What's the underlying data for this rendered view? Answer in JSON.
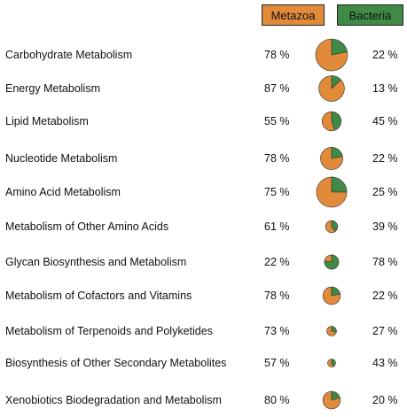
{
  "legend": {
    "metazoa_label": "Metazoa",
    "bacteria_label": "Bacteria",
    "metazoa_color": "#e08a3a",
    "bacteria_color": "#3f8a45"
  },
  "chart_data": {
    "type": "pie",
    "series": [
      {
        "name": "Metazoa"
      },
      {
        "name": "Bacteria"
      }
    ],
    "rows": [
      {
        "category": "Carbohydrate Metabolism",
        "metazoa_pct": 78,
        "bacteria_pct": 22,
        "metazoa_label": "78 %",
        "bacteria_label": "22 %",
        "relative_size": 1.0
      },
      {
        "category": "Energy Metabolism",
        "metazoa_pct": 87,
        "bacteria_pct": 13,
        "metazoa_label": "87 %",
        "bacteria_label": "13 %",
        "relative_size": 0.8
      },
      {
        "category": "Lipid Metabolism",
        "metazoa_pct": 55,
        "bacteria_pct": 45,
        "metazoa_label": "55 %",
        "bacteria_label": "45 %",
        "relative_size": 0.6
      },
      {
        "category": "Nucleotide Metabolism",
        "metazoa_pct": 78,
        "bacteria_pct": 22,
        "metazoa_label": "78 %",
        "bacteria_label": "22 %",
        "relative_size": 0.7
      },
      {
        "category": "Amino Acid Metabolism",
        "metazoa_pct": 75,
        "bacteria_pct": 25,
        "metazoa_label": "75 %",
        "bacteria_label": "25 %",
        "relative_size": 0.95
      },
      {
        "category": "Metabolism of Other Amino Acids",
        "metazoa_pct": 61,
        "bacteria_pct": 39,
        "metazoa_label": "61 %",
        "bacteria_label": "39 %",
        "relative_size": 0.38
      },
      {
        "category": "Glycan Biosynthesis and Metabolism",
        "metazoa_pct": 22,
        "bacteria_pct": 78,
        "metazoa_label": "22 %",
        "bacteria_label": "78 %",
        "relative_size": 0.45
      },
      {
        "category": "Metabolism of Cofactors and Vitamins",
        "metazoa_pct": 78,
        "bacteria_pct": 22,
        "metazoa_label": "78 %",
        "bacteria_label": "22 %",
        "relative_size": 0.55
      },
      {
        "category": "Metabolism of Terpenoids and Polyketides",
        "metazoa_pct": 73,
        "bacteria_pct": 27,
        "metazoa_label": "73 %",
        "bacteria_label": "27 %",
        "relative_size": 0.3
      },
      {
        "category": "Biosynthesis of Other Secondary Metabolites",
        "metazoa_pct": 57,
        "bacteria_pct": 43,
        "metazoa_label": "57 %",
        "bacteria_label": "43 %",
        "relative_size": 0.25
      },
      {
        "category": "Xenobiotics Biodegradation and Metabolism",
        "metazoa_pct": 80,
        "bacteria_pct": 20,
        "metazoa_label": "80 %",
        "bacteria_label": "20 %",
        "relative_size": 0.55
      }
    ]
  }
}
